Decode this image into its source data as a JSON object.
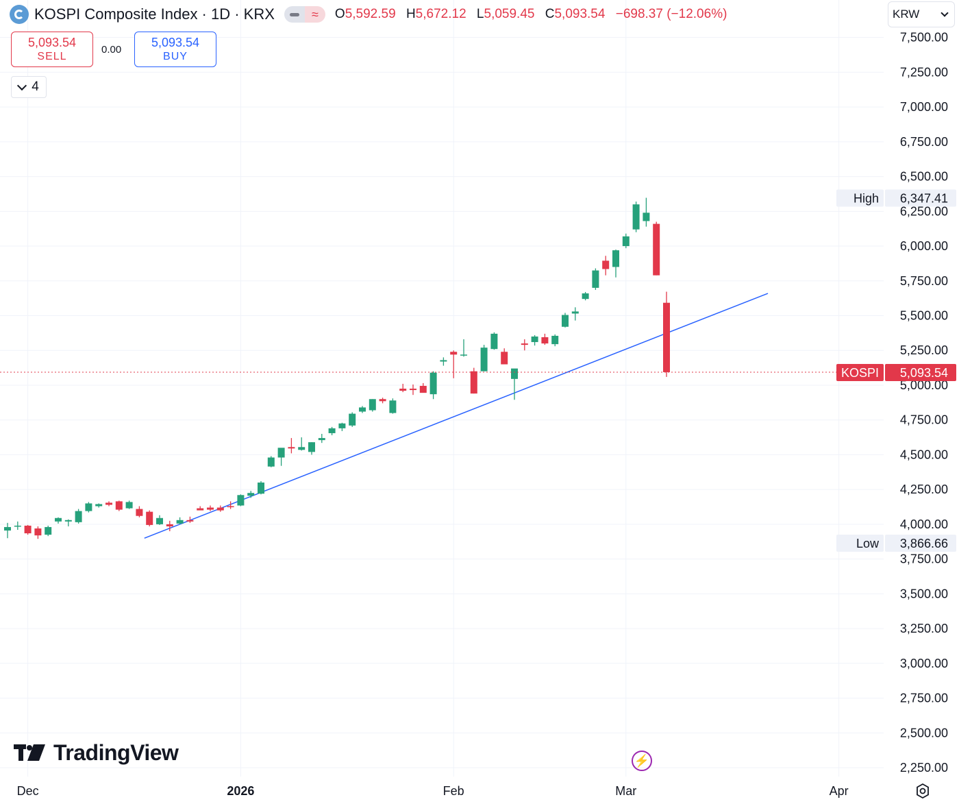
{
  "header": {
    "title": "KOSPI Composite Index · 1D · KRX",
    "ohlc": {
      "o_label": "O",
      "o": "5,592.59",
      "h_label": "H",
      "h": "5,672.12",
      "l_label": "L",
      "l": "5,059.45",
      "c_label": "C",
      "c": "5,093.54",
      "change": "−698.37 (−12.06%)"
    }
  },
  "trade": {
    "sell_price": "5,093.54",
    "sell_label": "SELL",
    "buy_price": "5,093.54",
    "buy_label": "BUY",
    "spread": "0.00"
  },
  "indicators_toggle": {
    "count": "4"
  },
  "currency": {
    "label": "KRW"
  },
  "logo": {
    "text": "TradingView"
  },
  "colors": {
    "up": "#26a17b",
    "down": "#e2384a",
    "trendline": "#2962ff",
    "grid": "#f0f3fa",
    "price_line": "#e2384a"
  },
  "chart_data": {
    "type": "candlestick",
    "symbol": "KOSPI",
    "interval": "1D",
    "y_axis": {
      "range": [
        2200,
        7600
      ],
      "ticks": [
        "2,250.00",
        "2,500.00",
        "2,750.00",
        "3,000.00",
        "3,250.00",
        "3,500.00",
        "3,750.00",
        "4,000.00",
        "4,250.00",
        "4,500.00",
        "4,750.00",
        "5,000.00",
        "5,250.00",
        "5,500.00",
        "5,750.00",
        "6,000.00",
        "6,250.00",
        "6,500.00",
        "6,750.00",
        "7,000.00",
        "7,250.00",
        "7,500.00"
      ]
    },
    "x_axis": {
      "labels": [
        {
          "text": "Dec",
          "bar": 2
        },
        {
          "text": "2026",
          "bar": 23,
          "bold": true
        },
        {
          "text": "Feb",
          "bar": 44
        },
        {
          "text": "Mar",
          "bar": 61
        },
        {
          "text": "Apr",
          "bar": 82
        }
      ]
    },
    "markers": {
      "high": {
        "label": "High",
        "value": "6,347.41"
      },
      "low": {
        "label": "Low",
        "value": "3,866.66"
      },
      "last": {
        "label": "KOSPI",
        "value": "5,093.54",
        "price": 5093.54
      }
    },
    "trendline": {
      "from": {
        "bar": 13.5,
        "price": 3900
      },
      "to": {
        "bar": 75,
        "price": 5660
      }
    },
    "candles": [
      {
        "o": 3955,
        "h": 4010,
        "l": 3900,
        "c": 3980
      },
      {
        "o": 3985,
        "h": 4020,
        "l": 3960,
        "c": 3990
      },
      {
        "o": 3990,
        "h": 3995,
        "l": 3925,
        "c": 3935
      },
      {
        "o": 3970,
        "h": 3985,
        "l": 3895,
        "c": 3920
      },
      {
        "o": 3925,
        "h": 3990,
        "l": 3915,
        "c": 3980
      },
      {
        "o": 4020,
        "h": 4050,
        "l": 4005,
        "c": 4045
      },
      {
        "o": 4020,
        "h": 4035,
        "l": 3985,
        "c": 4030
      },
      {
        "o": 4015,
        "h": 4110,
        "l": 4005,
        "c": 4095
      },
      {
        "o": 4095,
        "h": 4160,
        "l": 4085,
        "c": 4150
      },
      {
        "o": 4130,
        "h": 4150,
        "l": 4120,
        "c": 4145
      },
      {
        "o": 4155,
        "h": 4165,
        "l": 4130,
        "c": 4140
      },
      {
        "o": 4165,
        "h": 4170,
        "l": 4095,
        "c": 4105
      },
      {
        "o": 4115,
        "h": 4170,
        "l": 4110,
        "c": 4160
      },
      {
        "o": 4110,
        "h": 4130,
        "l": 4050,
        "c": 4060
      },
      {
        "o": 4090,
        "h": 4100,
        "l": 3985,
        "c": 3995
      },
      {
        "o": 4000,
        "h": 4065,
        "l": 3995,
        "c": 4045
      },
      {
        "o": 4000,
        "h": 4025,
        "l": 3950,
        "c": 3985
      },
      {
        "o": 4005,
        "h": 4050,
        "l": 4000,
        "c": 4030
      },
      {
        "o": 4030,
        "h": 4055,
        "l": 4010,
        "c": 4020
      },
      {
        "o": 4115,
        "h": 4130,
        "l": 4110,
        "c": 4100
      },
      {
        "o": 4120,
        "h": 4135,
        "l": 4095,
        "c": 4105
      },
      {
        "o": 4120,
        "h": 4135,
        "l": 4090,
        "c": 4100
      },
      {
        "o": 4130,
        "h": 4165,
        "l": 4110,
        "c": 4125
      },
      {
        "o": 4135,
        "h": 4215,
        "l": 4130,
        "c": 4210
      },
      {
        "o": 4205,
        "h": 4240,
        "l": 4190,
        "c": 4225
      },
      {
        "o": 4220,
        "h": 4310,
        "l": 4215,
        "c": 4300
      },
      {
        "o": 4415,
        "h": 4490,
        "l": 4410,
        "c": 4480
      },
      {
        "o": 4480,
        "h": 4540,
        "l": 4420,
        "c": 4550
      },
      {
        "o": 4555,
        "h": 4620,
        "l": 4510,
        "c": 4545
      },
      {
        "o": 4535,
        "h": 4625,
        "l": 4530,
        "c": 4555
      },
      {
        "o": 4520,
        "h": 4590,
        "l": 4500,
        "c": 4590
      },
      {
        "o": 4605,
        "h": 4650,
        "l": 4585,
        "c": 4620
      },
      {
        "o": 4655,
        "h": 4700,
        "l": 4640,
        "c": 4690
      },
      {
        "o": 4690,
        "h": 4730,
        "l": 4670,
        "c": 4725
      },
      {
        "o": 4710,
        "h": 4805,
        "l": 4700,
        "c": 4795
      },
      {
        "o": 4810,
        "h": 4850,
        "l": 4800,
        "c": 4840
      },
      {
        "o": 4820,
        "h": 4900,
        "l": 4810,
        "c": 4900
      },
      {
        "o": 4900,
        "h": 4910,
        "l": 4870,
        "c": 4885
      },
      {
        "o": 4800,
        "h": 4905,
        "l": 4795,
        "c": 4890
      },
      {
        "o": 4975,
        "h": 5010,
        "l": 4950,
        "c": 4960
      },
      {
        "o": 4975,
        "h": 5005,
        "l": 4930,
        "c": 4965
      },
      {
        "o": 4995,
        "h": 5015,
        "l": 4965,
        "c": 4945
      },
      {
        "o": 4935,
        "h": 5100,
        "l": 4900,
        "c": 5090
      },
      {
        "o": 5170,
        "h": 5200,
        "l": 5140,
        "c": 5180
      },
      {
        "o": 5240,
        "h": 5250,
        "l": 5050,
        "c": 5220
      },
      {
        "o": 5215,
        "h": 5330,
        "l": 5205,
        "c": 5220
      },
      {
        "o": 5100,
        "h": 5125,
        "l": 4940,
        "c": 4940
      },
      {
        "o": 5100,
        "h": 5290,
        "l": 5100,
        "c": 5270
      },
      {
        "o": 5260,
        "h": 5380,
        "l": 5255,
        "c": 5370
      },
      {
        "o": 5240,
        "h": 5265,
        "l": 5155,
        "c": 5150
      },
      {
        "o": 5045,
        "h": 5115,
        "l": 4895,
        "c": 5120
      },
      {
        "o": 5300,
        "h": 5330,
        "l": 5250,
        "c": 5290
      },
      {
        "o": 5310,
        "h": 5360,
        "l": 5285,
        "c": 5350
      },
      {
        "o": 5345,
        "h": 5370,
        "l": 5290,
        "c": 5300
      },
      {
        "o": 5295,
        "h": 5365,
        "l": 5280,
        "c": 5355
      },
      {
        "o": 5420,
        "h": 5520,
        "l": 5415,
        "c": 5505
      },
      {
        "o": 5515,
        "h": 5560,
        "l": 5465,
        "c": 5530
      },
      {
        "o": 5620,
        "h": 5670,
        "l": 5610,
        "c": 5660
      },
      {
        "o": 5700,
        "h": 5840,
        "l": 5685,
        "c": 5825
      },
      {
        "o": 5895,
        "h": 5930,
        "l": 5790,
        "c": 5835
      },
      {
        "o": 5850,
        "h": 5975,
        "l": 5775,
        "c": 5970
      },
      {
        "o": 6000,
        "h": 6090,
        "l": 5985,
        "c": 6070
      },
      {
        "o": 6120,
        "h": 6320,
        "l": 6100,
        "c": 6300
      },
      {
        "o": 6180,
        "h": 6347.41,
        "l": 6140,
        "c": 6240
      },
      {
        "o": 6160,
        "h": 6175,
        "l": 5790,
        "c": 5790
      },
      {
        "o": 5592.59,
        "h": 5672.12,
        "l": 5059.45,
        "c": 5093.54
      }
    ]
  }
}
